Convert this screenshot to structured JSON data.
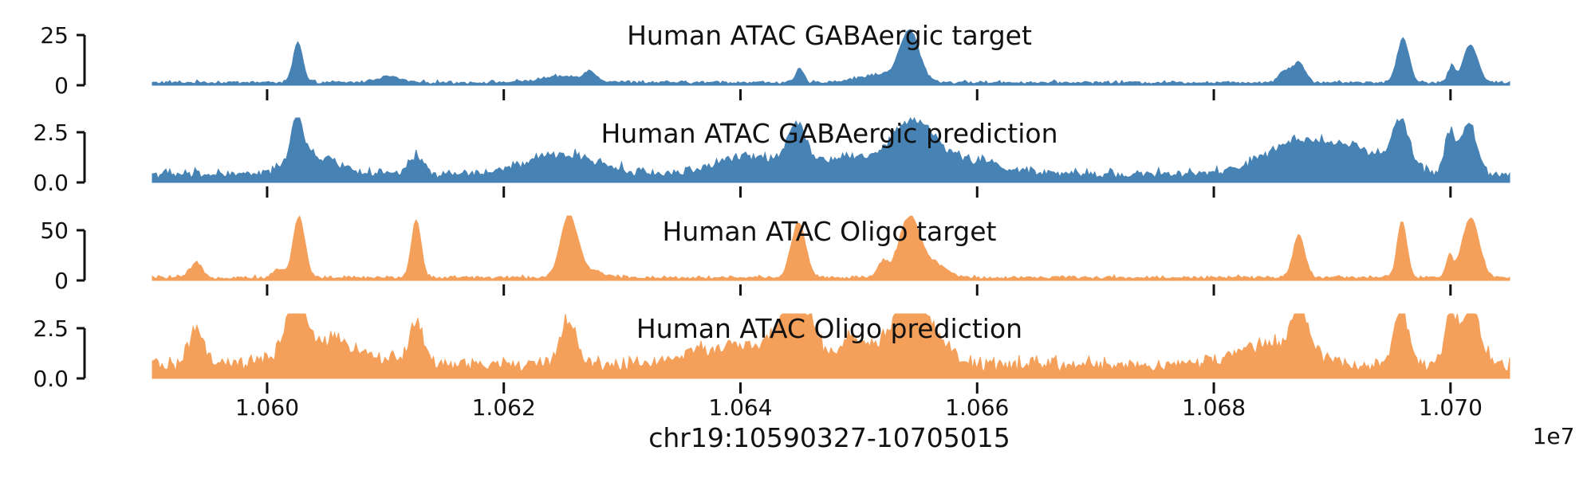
{
  "chart_data": {
    "type": "area",
    "xlabel": "chr19:10590327-10705015",
    "x_scale_label": "1e7",
    "xlim": [
      1.05903,
      1.0705
    ],
    "x_ticks": [
      "1.060",
      "1.062",
      "1.064",
      "1.066",
      "1.068",
      "1.070"
    ],
    "x_tick_values": [
      1.06,
      1.062,
      1.064,
      1.066,
      1.068,
      1.07
    ],
    "grid": false,
    "panels": [
      {
        "title": "Human ATAC GABAergic target",
        "color": "#4682b4",
        "ylim": [
          0,
          25
        ],
        "y_ticks": [
          "0",
          "25"
        ],
        "y_tick_values": [
          0,
          25
        ],
        "baseline": 1.2,
        "noise": 0.9,
        "peaks": [
          {
            "x": 1.06026,
            "h": 20,
            "w": 4e-05
          },
          {
            "x": 1.06102,
            "h": 3,
            "w": 0.0001
          },
          {
            "x": 1.06252,
            "h": 3,
            "w": 0.0002
          },
          {
            "x": 1.06273,
            "h": 4,
            "w": 5e-05
          },
          {
            "x": 1.0645,
            "h": 7,
            "w": 3e-05
          },
          {
            "x": 1.06543,
            "h": 24,
            "w": 8e-05
          },
          {
            "x": 1.0652,
            "h": 4,
            "w": 0.0002
          },
          {
            "x": 1.0686,
            "h": 6,
            "w": 5e-05
          },
          {
            "x": 1.06872,
            "h": 10,
            "w": 5e-05
          },
          {
            "x": 1.0696,
            "h": 22,
            "w": 5e-05
          },
          {
            "x": 1.07001,
            "h": 8,
            "w": 3e-05
          },
          {
            "x": 1.07017,
            "h": 19,
            "w": 6e-05
          }
        ]
      },
      {
        "title": "Human ATAC GABAergic prediction",
        "color": "#4682b4",
        "ylim": [
          0,
          2.5
        ],
        "y_ticks": [
          "0.0",
          "2.5"
        ],
        "y_tick_values": [
          0,
          2.5
        ],
        "baseline": 0.35,
        "noise": 0.25,
        "peaks": [
          {
            "x": 1.06025,
            "h": 2.4,
            "w": 5e-05
          },
          {
            "x": 1.0604,
            "h": 0.9,
            "w": 0.0002
          },
          {
            "x": 1.06126,
            "h": 0.9,
            "w": 6e-05
          },
          {
            "x": 1.0625,
            "h": 1.0,
            "w": 0.0003
          },
          {
            "x": 1.0641,
            "h": 0.9,
            "w": 0.0003
          },
          {
            "x": 1.06448,
            "h": 2.1,
            "w": 8e-05
          },
          {
            "x": 1.0649,
            "h": 0.9,
            "w": 0.0002
          },
          {
            "x": 1.06545,
            "h": 2.5,
            "w": 0.00018
          },
          {
            "x": 1.0659,
            "h": 0.7,
            "w": 0.0003
          },
          {
            "x": 1.0687,
            "h": 1.4,
            "w": 0.0003
          },
          {
            "x": 1.0692,
            "h": 1.0,
            "w": 0.0003
          },
          {
            "x": 1.06958,
            "h": 2.3,
            "w": 7e-05
          },
          {
            "x": 1.06999,
            "h": 2.0,
            "w": 4e-05
          },
          {
            "x": 1.07015,
            "h": 2.5,
            "w": 7e-05
          }
        ]
      },
      {
        "title": "Human ATAC Oligo target",
        "color": "#f5a05a",
        "ylim": [
          0,
          50
        ],
        "y_ticks": [
          "0",
          "50"
        ],
        "y_tick_values": [
          0,
          50
        ],
        "baseline": 2.5,
        "noise": 2.0,
        "peaks": [
          {
            "x": 1.0594,
            "h": 14,
            "w": 5e-05
          },
          {
            "x": 1.0601,
            "h": 9,
            "w": 4e-05
          },
          {
            "x": 1.06027,
            "h": 60,
            "w": 5e-05
          },
          {
            "x": 1.06126,
            "h": 58,
            "w": 4e-05
          },
          {
            "x": 1.06255,
            "h": 58,
            "w": 7e-05
          },
          {
            "x": 1.0627,
            "h": 8,
            "w": 0.00012
          },
          {
            "x": 1.06449,
            "h": 55,
            "w": 6e-05
          },
          {
            "x": 1.0652,
            "h": 15,
            "w": 4e-05
          },
          {
            "x": 1.06543,
            "h": 60,
            "w": 9e-05
          },
          {
            "x": 1.06565,
            "h": 12,
            "w": 0.0001
          },
          {
            "x": 1.06872,
            "h": 42,
            "w": 5e-05
          },
          {
            "x": 1.06959,
            "h": 57,
            "w": 4e-05
          },
          {
            "x": 1.06999,
            "h": 20,
            "w": 3e-05
          },
          {
            "x": 1.07017,
            "h": 60,
            "w": 7e-05
          }
        ]
      },
      {
        "title": "Human ATAC Oligo prediction",
        "color": "#f5a05a",
        "ylim": [
          0,
          2.5
        ],
        "y_ticks": [
          "0.0",
          "2.5"
        ],
        "y_tick_values": [
          0,
          2.5
        ],
        "baseline": 0.6,
        "noise": 0.35,
        "peaks": [
          {
            "x": 1.0594,
            "h": 1.8,
            "w": 6e-05
          },
          {
            "x": 1.06025,
            "h": 3.0,
            "w": 7e-05
          },
          {
            "x": 1.0605,
            "h": 1.2,
            "w": 0.0003
          },
          {
            "x": 1.06126,
            "h": 2.1,
            "w": 6e-05
          },
          {
            "x": 1.06254,
            "h": 2.2,
            "w": 7e-05
          },
          {
            "x": 1.064,
            "h": 1.0,
            "w": 0.0004
          },
          {
            "x": 1.06448,
            "h": 3.2,
            "w": 0.00012
          },
          {
            "x": 1.06495,
            "h": 1.3,
            "w": 0.0001
          },
          {
            "x": 1.06545,
            "h": 3.4,
            "w": 0.00018
          },
          {
            "x": 1.06873,
            "h": 2.2,
            "w": 7e-05
          },
          {
            "x": 1.0685,
            "h": 1.0,
            "w": 0.0003
          },
          {
            "x": 1.06958,
            "h": 3.0,
            "w": 6e-05
          },
          {
            "x": 1.07,
            "h": 2.8,
            "w": 4e-05
          },
          {
            "x": 1.07017,
            "h": 3.0,
            "w": 8e-05
          }
        ]
      }
    ]
  }
}
